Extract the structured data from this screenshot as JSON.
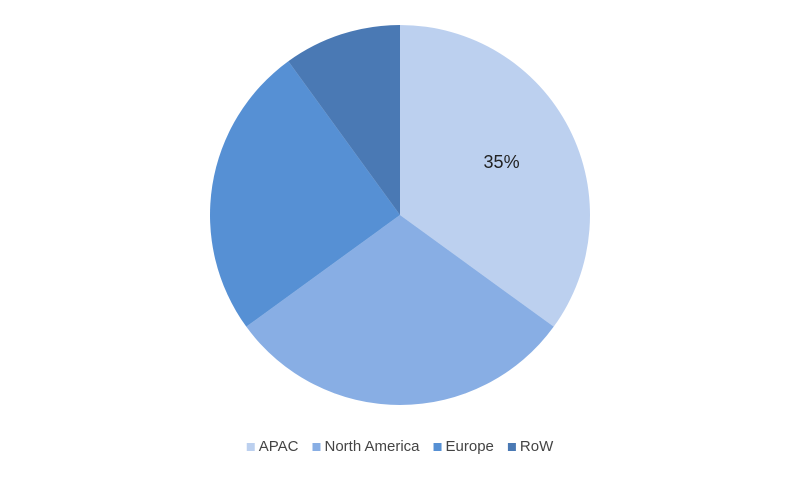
{
  "chart_data": {
    "type": "pie",
    "categories": [
      "APAC",
      "North America",
      "Europe",
      "RoW"
    ],
    "values": [
      35,
      30,
      25,
      10
    ],
    "value_labels": [
      "35%",
      null,
      null,
      null
    ],
    "colors": [
      "#bcd0ef",
      "#88aee4",
      "#5690d4",
      "#4a79b4"
    ]
  }
}
